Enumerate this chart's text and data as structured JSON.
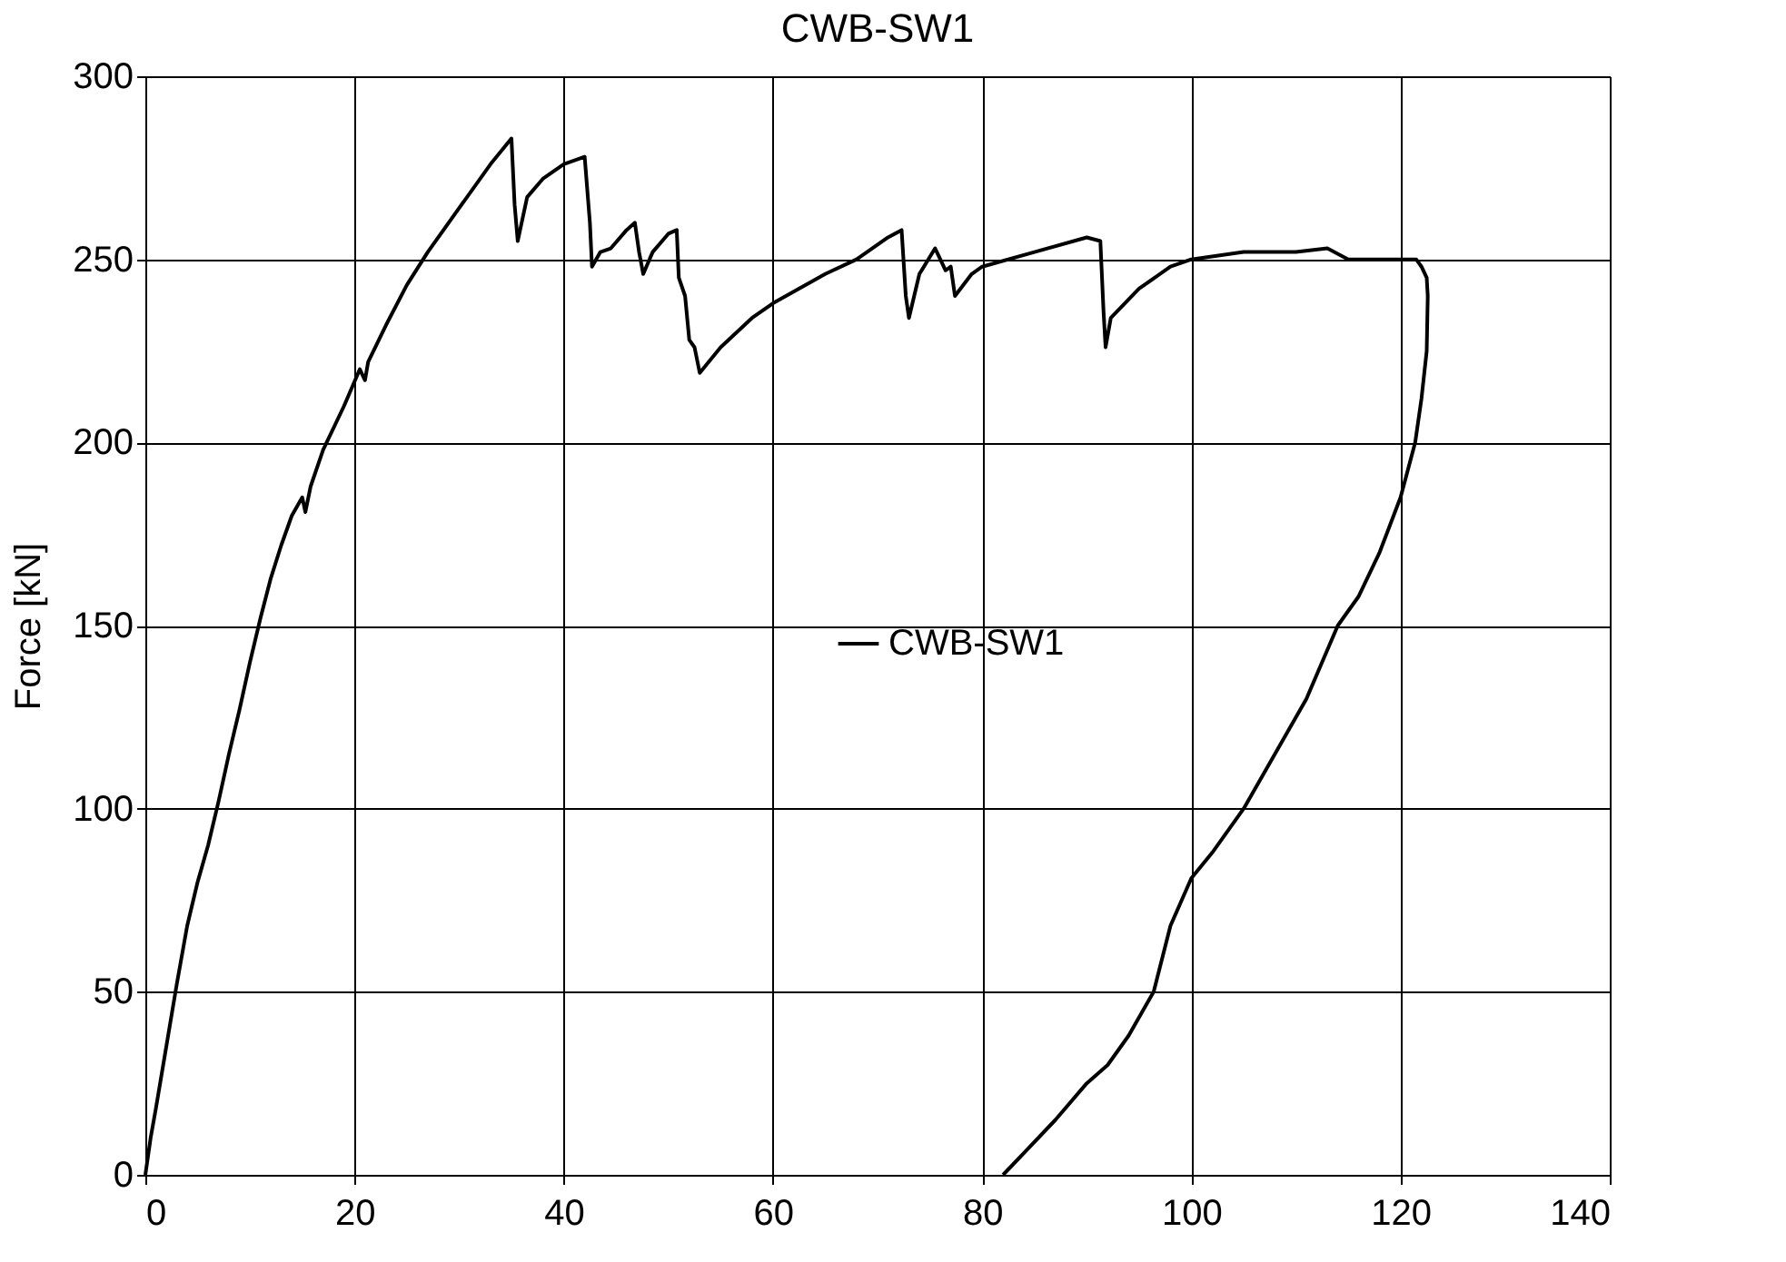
{
  "chart_data": {
    "type": "line",
    "title": "CWB-SW1",
    "ylabel": "Force [kN]",
    "xlim": [
      0,
      140
    ],
    "xticks": [
      0,
      20,
      40,
      60,
      80,
      100,
      120,
      140
    ],
    "ylim": [
      0,
      300
    ],
    "yticks": [
      0,
      50,
      100,
      150,
      200,
      250,
      300
    ],
    "grid": true,
    "legend": "right",
    "marker": "none",
    "line_style": "solid",
    "series": [
      {
        "name": "CWB-SW1",
        "color": "#000000",
        "x": [
          0,
          0.5,
          1,
          2,
          3,
          4,
          5,
          6,
          7,
          8,
          9,
          10,
          11,
          12,
          13,
          14,
          15,
          15.3,
          15.8,
          17,
          19,
          20.5,
          21,
          21.3,
          23,
          25,
          27,
          30,
          33,
          35,
          35.3,
          35.6,
          36.5,
          38,
          40,
          42,
          42.5,
          42.7,
          43.5,
          44.5,
          46,
          46.8,
          47.2,
          47.6,
          48.5,
          50,
          50.8,
          51,
          51.6,
          52,
          52.5,
          53,
          55,
          58,
          60,
          65,
          68,
          71,
          72.3,
          72.7,
          73,
          74,
          75.5,
          76,
          76.5,
          77,
          77.4,
          79,
          80,
          85,
          90,
          91.3,
          91.6,
          91.8,
          92.3,
          95,
          98,
          100,
          105,
          110,
          113,
          115,
          118,
          120.5,
          121.5,
          122,
          122.5,
          122.6,
          122.5,
          122,
          121.4,
          120,
          118,
          116,
          114,
          111,
          108,
          105,
          102,
          100,
          98,
          96.4,
          94,
          92,
          90,
          87,
          84,
          82
        ],
        "values": [
          0,
          10,
          18,
          35,
          52,
          68,
          80,
          90,
          102,
          115,
          127,
          140,
          152,
          163,
          172,
          180,
          185,
          181,
          188,
          198,
          210,
          220,
          217,
          222,
          232,
          243,
          252,
          264,
          276,
          283,
          265,
          255,
          267,
          272,
          276,
          278,
          260,
          248,
          252,
          253,
          258,
          260,
          252,
          246,
          252,
          257,
          258,
          245,
          240,
          228,
          226,
          219,
          226,
          234,
          238,
          246,
          250,
          256,
          258,
          240,
          234,
          246,
          253,
          250,
          247,
          248,
          240,
          246,
          248,
          252,
          256,
          255,
          236,
          226,
          234,
          242,
          248,
          250,
          252,
          252,
          253,
          250,
          250,
          250,
          250,
          248,
          245,
          240,
          225,
          212,
          200,
          185,
          170,
          158,
          150,
          130,
          115,
          100,
          88,
          81,
          68,
          50,
          38,
          30,
          25,
          15,
          6,
          0
        ]
      }
    ]
  }
}
